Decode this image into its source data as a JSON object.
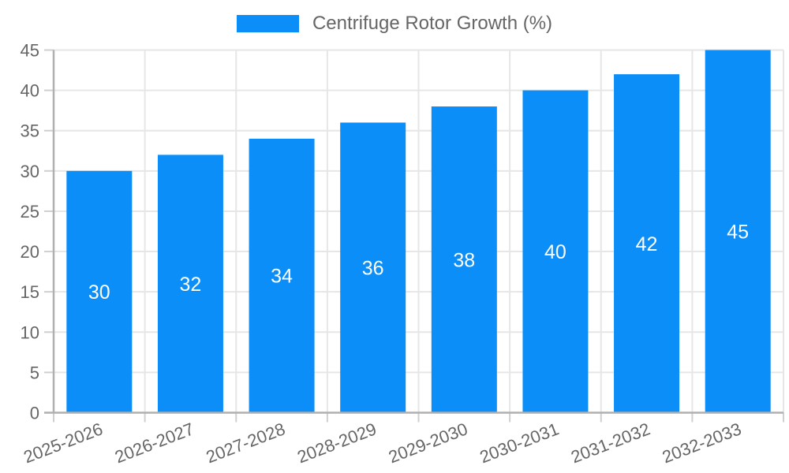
{
  "chart_data": {
    "type": "bar",
    "title": "",
    "legend": {
      "label": "Centrifuge Rotor Growth (%)",
      "position": "top-center"
    },
    "categories": [
      "2025-2026",
      "2026-2027",
      "2027-2028",
      "2028-2029",
      "2029-2030",
      "2030-2031",
      "2031-2032",
      "2032-2033"
    ],
    "series": [
      {
        "name": "Centrifuge Rotor Growth (%)",
        "values": [
          30,
          32,
          34,
          36,
          38,
          40,
          42,
          45
        ]
      }
    ],
    "bar_labels_shown": true,
    "xlabel": "",
    "ylabel": "",
    "ylim": [
      0,
      45
    ],
    "ytick_step": 5,
    "yticks": [
      0,
      5,
      10,
      15,
      20,
      25,
      30,
      35,
      40,
      45
    ],
    "grid": true,
    "x_label_rotation_deg": -21,
    "colors": {
      "bar": "#0C8EF8",
      "grid": "#e6e6e6",
      "tick": "#cfcfcf",
      "axis": "#b0b0b0",
      "text": "#666666",
      "bar_label": "#ffffff",
      "background": "#ffffff"
    }
  }
}
